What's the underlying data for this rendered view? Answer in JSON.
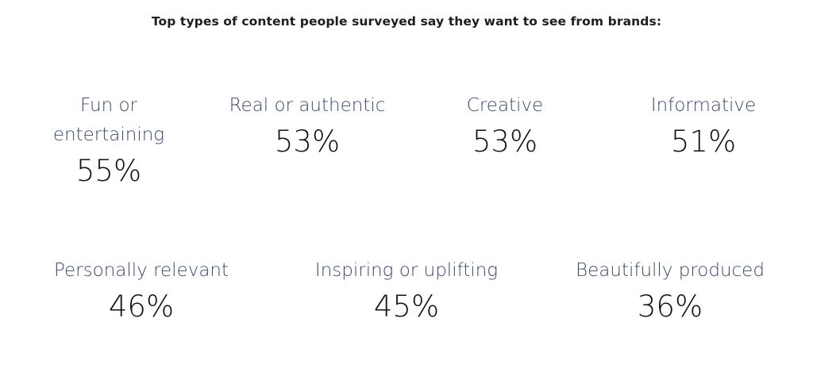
{
  "chart_data": {
    "type": "table",
    "title": "Top types of content people surveyed say they want to see from brands:",
    "unit": "%",
    "categories": [
      "Fun or entertaining",
      "Real or authentic",
      "Creative",
      "Informative",
      "Personally relevant",
      "Inspiring or uplifting",
      "Beautifully produced"
    ],
    "values": [
      55,
      53,
      53,
      51,
      46,
      45,
      36
    ],
    "display_labels": [
      "Fun or\nentertaining",
      "Real or authentic",
      "Creative",
      "Informative",
      "Personally relevant",
      "Inspiring or uplifting",
      "Beautifully produced"
    ],
    "display_values": [
      "55%",
      "53%",
      "53%",
      "51%",
      "46%",
      "45%",
      "36%"
    ],
    "colors": {
      "label": "#3b4a6b",
      "value": "#111111",
      "title": "#1c1e21"
    }
  }
}
